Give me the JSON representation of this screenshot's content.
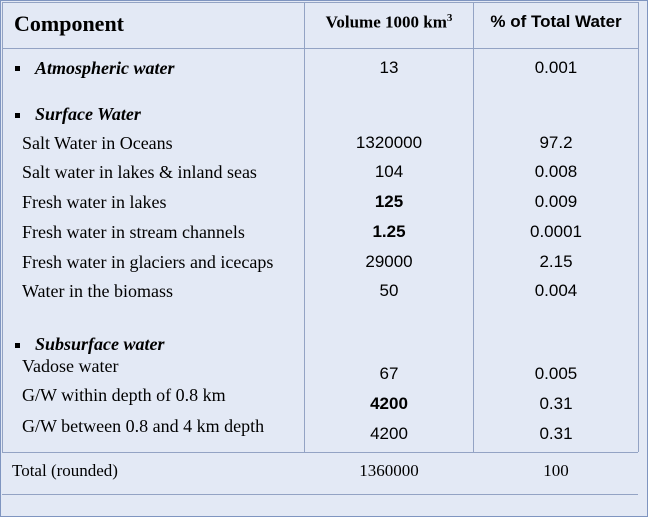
{
  "header": {
    "component": "Component",
    "volume": "Volume 1000 km",
    "volume_sup": "3",
    "percent": "% of Total Water"
  },
  "atmospheric": {
    "label": "Atmospheric water",
    "volume": "13",
    "percent": "0.001"
  },
  "surface": {
    "label": "Surface Water",
    "rows": [
      {
        "label": "Salt Water in Oceans",
        "volume": "1320000",
        "percent": "97.2"
      },
      {
        "label": "Salt water in lakes & inland seas",
        "volume": "104",
        "percent": "0.008"
      },
      {
        "label": "Fresh water in lakes",
        "volume": "125",
        "percent": "0.009"
      },
      {
        "label": "Fresh water in stream channels",
        "volume": "1.25",
        "percent": "0.0001"
      },
      {
        "label": "Fresh water in glaciers and icecaps",
        "volume": "29000",
        "percent": "2.15"
      },
      {
        "label": "Water in the biomass",
        "volume": "50",
        "percent": "0.004"
      }
    ]
  },
  "subsurface": {
    "label": "Subsurface water",
    "rows": [
      {
        "label": "Vadose water",
        "volume": "67",
        "percent": "0.005"
      },
      {
        "label": "G/W within depth of 0.8 km",
        "volume": "4200",
        "percent": "0.31"
      },
      {
        "label": "G/W between 0.8 and 4 km depth",
        "volume": "4200",
        "percent": "0.31"
      }
    ]
  },
  "total": {
    "label": "Total (rounded)",
    "volume": "1360000",
    "percent": "100"
  }
}
